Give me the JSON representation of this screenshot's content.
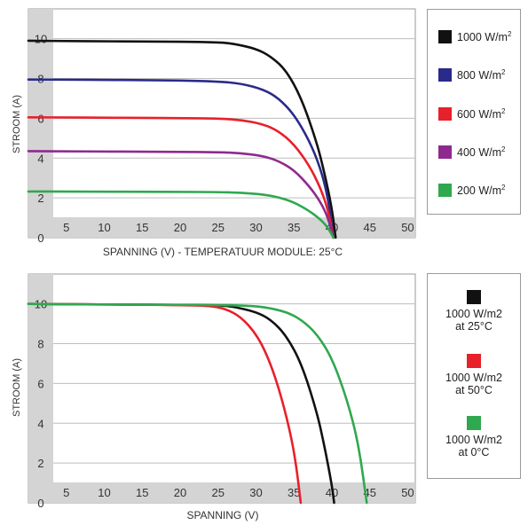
{
  "chart_data": [
    {
      "type": "line",
      "title": "",
      "xlabel": "SPANNING (V) - TEMPERATUUR MODULE: 25°C",
      "ylabel": "STROOM (A)",
      "xlim": [
        0,
        51
      ],
      "ylim": [
        0,
        11.5
      ],
      "x_ticks": [
        5,
        10,
        15,
        20,
        25,
        30,
        35,
        40,
        45,
        50
      ],
      "y_ticks": [
        0,
        2,
        4,
        6,
        8,
        10
      ],
      "grid": "horizontal",
      "legend_position": "right",
      "series": [
        {
          "name": "1000 W/m",
          "unit_sup": "2",
          "color": "#111111",
          "x": [
            0,
            5,
            10,
            15,
            20,
            25,
            27,
            30,
            32,
            34,
            36,
            38,
            39,
            40,
            40.5
          ],
          "y": [
            9.9,
            9.88,
            9.87,
            9.86,
            9.85,
            9.82,
            9.75,
            9.5,
            9.1,
            8.4,
            7.0,
            4.8,
            3.3,
            1.5,
            0
          ]
        },
        {
          "name": "800 W/m",
          "unit_sup": "2",
          "color": "#2a2a8a",
          "x": [
            0,
            5,
            10,
            15,
            20,
            25,
            28,
            31,
            33,
            35,
            37,
            38.5,
            39.5,
            40.2
          ],
          "y": [
            7.95,
            7.94,
            7.93,
            7.92,
            7.9,
            7.85,
            7.75,
            7.45,
            7.0,
            6.2,
            4.9,
            3.5,
            2.0,
            0
          ]
        },
        {
          "name": "600 W/m",
          "unit_sup": "2",
          "color": "#e8202a",
          "x": [
            0,
            5,
            10,
            15,
            20,
            25,
            28,
            31,
            33,
            35,
            37,
            38.5,
            39.5,
            40.2
          ],
          "y": [
            6.05,
            6.04,
            6.03,
            6.02,
            6.01,
            5.99,
            5.92,
            5.7,
            5.35,
            4.7,
            3.65,
            2.5,
            1.4,
            0
          ]
        },
        {
          "name": "400 W/m",
          "unit_sup": "2",
          "color": "#8e2a8e",
          "x": [
            0,
            5,
            10,
            15,
            20,
            25,
            28,
            31,
            33,
            35,
            37,
            38.5,
            39.5,
            40.2
          ],
          "y": [
            4.35,
            4.34,
            4.33,
            4.32,
            4.31,
            4.3,
            4.25,
            4.1,
            3.85,
            3.4,
            2.6,
            1.8,
            1.0,
            0
          ]
        },
        {
          "name": "200 W/m",
          "unit_sup": "2",
          "color": "#2fa84f",
          "x": [
            0,
            5,
            10,
            15,
            20,
            25,
            28,
            31,
            33,
            35,
            37,
            38.5,
            39.5,
            40.2
          ],
          "y": [
            2.32,
            2.32,
            2.31,
            2.31,
            2.3,
            2.29,
            2.26,
            2.17,
            2.03,
            1.78,
            1.35,
            0.92,
            0.5,
            0
          ]
        }
      ]
    },
    {
      "type": "line",
      "title": "",
      "xlabel": "SPANNING (V)",
      "ylabel": "STROOM (A)",
      "xlim": [
        0,
        51
      ],
      "ylim": [
        0,
        11.5
      ],
      "x_ticks": [
        5,
        10,
        15,
        20,
        25,
        30,
        35,
        40,
        45,
        50
      ],
      "y_ticks": [
        0,
        2,
        4,
        6,
        8,
        10
      ],
      "grid": "horizontal",
      "legend_position": "right",
      "series": [
        {
          "name": "1000 W/m2\nat 25°C",
          "color": "#111111",
          "x": [
            0,
            5,
            10,
            15,
            20,
            25,
            27,
            30,
            32,
            34,
            36,
            38,
            39,
            40,
            40.3
          ],
          "y": [
            10.0,
            9.98,
            9.97,
            9.96,
            9.95,
            9.93,
            9.86,
            9.6,
            9.2,
            8.4,
            7.0,
            4.6,
            2.9,
            0.9,
            0
          ]
        },
        {
          "name": "1000 W/m2\nat 50°C",
          "color": "#e8202a",
          "x": [
            0,
            5,
            10,
            15,
            20,
            24,
            26,
            28,
            30,
            31.5,
            33,
            34.5,
            35.3,
            35.9
          ],
          "y": [
            10.0,
            9.98,
            9.97,
            9.96,
            9.94,
            9.9,
            9.75,
            9.35,
            8.5,
            7.4,
            5.8,
            3.6,
            1.9,
            0
          ]
        },
        {
          "name": "1000 W/m2\nat 0°C",
          "color": "#2fa84f",
          "x": [
            0,
            5,
            10,
            15,
            20,
            25,
            28,
            31,
            34,
            36,
            38,
            40,
            42,
            43.5,
            44.6
          ],
          "y": [
            10.0,
            9.98,
            9.97,
            9.96,
            9.95,
            9.94,
            9.92,
            9.85,
            9.6,
            9.2,
            8.5,
            7.3,
            5.2,
            3.0,
            0
          ]
        }
      ]
    }
  ]
}
